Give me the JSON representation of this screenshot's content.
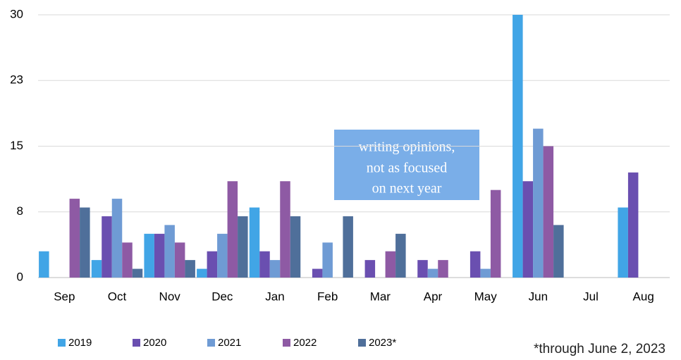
{
  "chart_data": {
    "type": "bar",
    "categories": [
      "Sep",
      "Oct",
      "Nov",
      "Dec",
      "Jan",
      "Feb",
      "Mar",
      "Apr",
      "May",
      "Jun",
      "Jul",
      "Aug"
    ],
    "series": [
      {
        "name": "2019",
        "color": "#41a5e6",
        "values": [
          3,
          2,
          5,
          1,
          8,
          0,
          0,
          0,
          0,
          30,
          0,
          8
        ]
      },
      {
        "name": "2020",
        "color": "#6a4fb0",
        "values": [
          0,
          7,
          5,
          3,
          3,
          1,
          2,
          2,
          3,
          11,
          0,
          12
        ]
      },
      {
        "name": "2021",
        "color": "#6f9bd4",
        "values": [
          0,
          9,
          6,
          5,
          2,
          4,
          0,
          1,
          1,
          17,
          0,
          0
        ]
      },
      {
        "name": "2022",
        "color": "#8e5aa4",
        "values": [
          9,
          4,
          4,
          11,
          11,
          0,
          3,
          2,
          10,
          15,
          0,
          0
        ]
      },
      {
        "name": "2023*",
        "color": "#4f6f9a",
        "values": [
          8,
          1,
          2,
          7,
          7,
          7,
          5,
          0,
          0,
          6,
          0,
          0
        ]
      }
    ],
    "ylim": [
      0,
      30
    ],
    "yticks": [
      0,
      {
        "value": 7.5,
        "label": "8"
      },
      15,
      {
        "value": 22.5,
        "label": "23"
      },
      30
    ],
    "grid": true,
    "legend": "bottom",
    "annotation": [
      "writing opinions,",
      "not as focused",
      "on next year"
    ],
    "note": "*through June 2, 2023"
  }
}
